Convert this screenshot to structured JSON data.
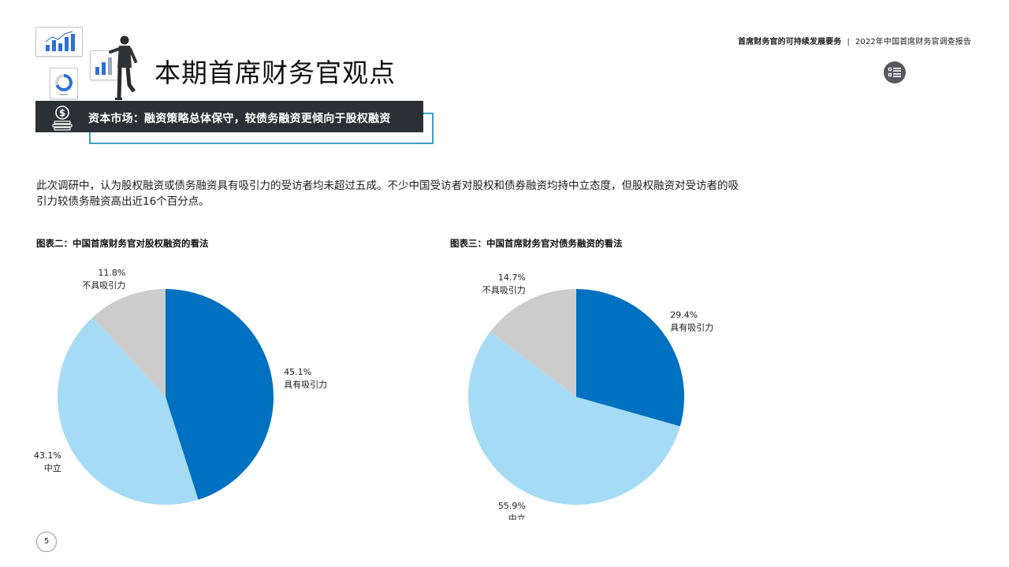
{
  "header": {
    "report_topic": "首席财务官的可持续发展要务",
    "separator": "|",
    "report_title": "2022年中国首席财务官调查报告"
  },
  "page_title": "本期首席财务官观点",
  "banner": {
    "text": "资本市场：融资策略总体保守，较债务融资更倾向于股权融资"
  },
  "body_text": "此次调研中，认为股权融资或债务融资具有吸引力的受访者均未超过五成。不少中国受访者对股权和债券融资均持中立态度，但股权融资对受访者的吸引力较债务融资高出近16个百分点。",
  "colors": {
    "dark_blue": "#0070c0",
    "light_blue": "#a6dbf6",
    "gray": "#cccccc",
    "banner_bg": "#2c3034",
    "banner_outline": "#3aa0c6"
  },
  "icons": {
    "menu": "list-icon",
    "banner": "dollar-coins-icon"
  },
  "chart_data": [
    {
      "type": "pie",
      "title": "图表二：中国首席财务官对股权融资的看法",
      "slices": [
        {
          "label": "具有吸引力",
          "value": 45.1,
          "display": "45.1%",
          "color": "#0070c0"
        },
        {
          "label": "中立",
          "value": 43.1,
          "display": "43.1%",
          "color": "#a6dbf6"
        },
        {
          "label": "不具吸引力",
          "value": 11.8,
          "display": "11.8%",
          "color": "#cccccc"
        }
      ]
    },
    {
      "type": "pie",
      "title": "图表三：中国首席财务官对债务融资的看法",
      "slices": [
        {
          "label": "具有吸引力",
          "value": 29.4,
          "display": "29.4%",
          "color": "#0070c0"
        },
        {
          "label": "中立",
          "value": 55.9,
          "display": "55.9%",
          "color": "#a6dbf6"
        },
        {
          "label": "不具吸引力",
          "value": 14.7,
          "display": "14.7%",
          "color": "#cccccc"
        }
      ]
    }
  ],
  "page_number": "5"
}
